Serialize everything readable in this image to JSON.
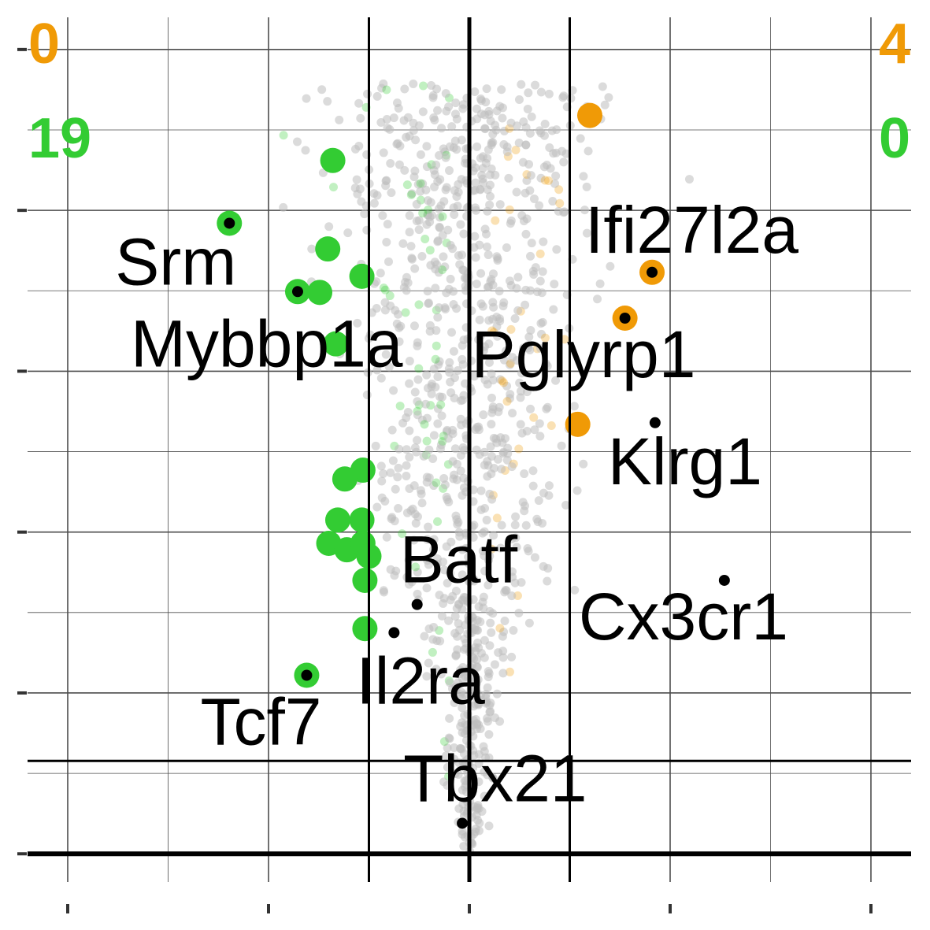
{
  "chart_data": {
    "type": "scatter",
    "title": "",
    "xlabel": "",
    "ylabel": "",
    "x_range": [
      -4.4,
      4.4
    ],
    "y_range": [
      -0.35,
      10.4
    ],
    "grid": true,
    "threshold_lines": {
      "x": [
        -1,
        0,
        1
      ],
      "y": [
        0
      ]
    },
    "colors": {
      "up": "#f09a06",
      "down": "#33cc33",
      "background": "#bdbdbd",
      "label_dot": "#000000",
      "grid": "#4d4d4d",
      "axis": "#000000"
    },
    "counts": {
      "up_left": "0",
      "up_right": "4",
      "down_left": "19",
      "down_right": "0"
    },
    "down_points": [
      {
        "x": -1.36,
        "y": 8.62
      },
      {
        "x": -1.41,
        "y": 7.52
      },
      {
        "x": -1.07,
        "y": 7.18
      },
      {
        "x": -1.49,
        "y": 6.98
      },
      {
        "x": -1.33,
        "y": 6.34
      },
      {
        "x": -1.06,
        "y": 4.77
      },
      {
        "x": -1.24,
        "y": 4.66
      },
      {
        "x": -1.31,
        "y": 4.15
      },
      {
        "x": -1.07,
        "y": 4.15
      },
      {
        "x": -1.4,
        "y": 3.86
      },
      {
        "x": -1.22,
        "y": 3.78
      },
      {
        "x": -1.06,
        "y": 3.86
      },
      {
        "x": -1.0,
        "y": 3.7
      },
      {
        "x": -1.04,
        "y": 3.4
      },
      {
        "x": -1.04,
        "y": 2.8
      }
    ],
    "up_points": [
      {
        "x": 1.2,
        "y": 9.18
      },
      {
        "x": 1.08,
        "y": 5.34
      }
    ],
    "highlighted_genes": [
      {
        "name": "Srm",
        "x": -2.39,
        "y": 7.84,
        "group": "down"
      },
      {
        "name": "Mybbp1a",
        "x": -1.71,
        "y": 6.99,
        "group": "down"
      },
      {
        "name": "Tcf7",
        "x": -1.62,
        "y": 2.22,
        "group": "down"
      },
      {
        "name": "Batf",
        "x": -0.52,
        "y": 3.1,
        "group": "none"
      },
      {
        "name": "Il2ra",
        "x": -0.75,
        "y": 2.75,
        "group": "none"
      },
      {
        "name": "Tbx21",
        "x": -0.07,
        "y": 0.38,
        "group": "none"
      },
      {
        "name": "Ifi27l2a",
        "x": 1.82,
        "y": 7.23,
        "group": "up"
      },
      {
        "name": "Pglyrp1",
        "x": 1.55,
        "y": 6.66,
        "group": "up"
      },
      {
        "name": "Klrg1",
        "x": 1.85,
        "y": 5.36,
        "group": "none"
      },
      {
        "name": "Cx3cr1",
        "x": 2.54,
        "y": 3.4,
        "group": "none"
      }
    ],
    "x_ticks": [
      -4,
      -2,
      0,
      2,
      4
    ],
    "y_ticks": [
      0,
      2,
      4,
      6,
      8,
      10
    ]
  }
}
